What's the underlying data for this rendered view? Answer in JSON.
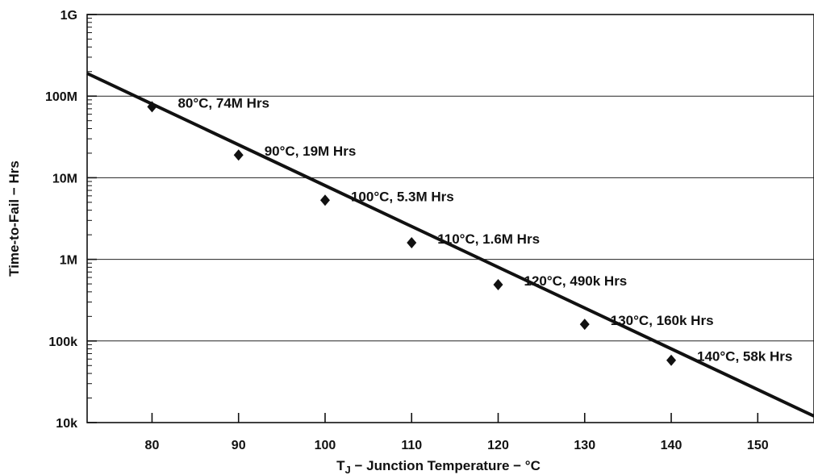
{
  "chart_data": {
    "type": "line",
    "xlabel": "T",
    "xlabel_sub": "J",
    "xlabel_rest": " − Junction Temperature − °C",
    "ylabel": "Time-to-Fail − Hrs",
    "xlim": [
      72.5,
      156.5
    ],
    "ylim": [
      10000,
      1000000000
    ],
    "y_scale": "log",
    "grid": "horizontal",
    "x_ticks": [
      80,
      90,
      100,
      110,
      120,
      130,
      140,
      150
    ],
    "x_tick_labels": [
      "80",
      "90",
      "100",
      "110",
      "120",
      "130",
      "140",
      "150"
    ],
    "y_ticks": [
      10000,
      100000,
      1000000,
      10000000,
      100000000,
      1000000000
    ],
    "y_tick_labels": [
      "10k",
      "100k",
      "1M",
      "10M",
      "100M",
      "1G"
    ],
    "line": {
      "x": [
        72.5,
        156.5
      ],
      "y": [
        190000000,
        12000
      ]
    },
    "points": [
      {
        "x": 80,
        "y": 74000000,
        "label": "80°C, 74M Hrs"
      },
      {
        "x": 90,
        "y": 19000000,
        "label": "90°C, 19M Hrs"
      },
      {
        "x": 100,
        "y": 5300000,
        "label": "100°C, 5.3M Hrs"
      },
      {
        "x": 110,
        "y": 1600000,
        "label": "110°C, 1.6M Hrs"
      },
      {
        "x": 120,
        "y": 490000,
        "label": "120°C, 490k Hrs"
      },
      {
        "x": 130,
        "y": 160000,
        "label": "130°C, 160k Hrs"
      },
      {
        "x": 140,
        "y": 58000,
        "label": "140°C, 58k Hrs"
      }
    ]
  }
}
